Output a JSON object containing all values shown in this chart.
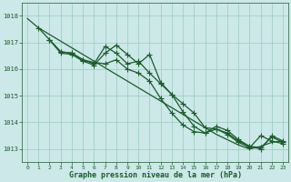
{
  "background_color": "#cce8e8",
  "grid_color": "#99ccbb",
  "line_color": "#1a5c2a",
  "ylim": [
    1012.5,
    1018.5
  ],
  "xlim": [
    -0.5,
    23.5
  ],
  "yticks": [
    1013,
    1014,
    1015,
    1016,
    1017,
    1018
  ],
  "xticks": [
    0,
    1,
    2,
    3,
    4,
    5,
    6,
    7,
    8,
    9,
    10,
    11,
    12,
    13,
    14,
    15,
    16,
    17,
    18,
    19,
    20,
    21,
    22,
    23
  ],
  "xlabel": "Graphe pression niveau de la mer (hPa)",
  "series": [
    {
      "x": [
        0,
        1,
        2,
        3,
        4,
        5,
        6,
        7,
        8,
        9,
        10,
        11,
        12,
        13,
        14,
        15,
        16,
        17,
        18,
        19,
        20,
        21,
        22,
        23
      ],
      "y": [
        1017.9,
        1017.55,
        1017.3,
        1017.05,
        1016.8,
        1016.55,
        1016.3,
        1016.05,
        1015.8,
        1015.55,
        1015.3,
        1015.05,
        1014.8,
        1014.55,
        1014.3,
        1014.05,
        1013.8,
        1013.55,
        1013.35,
        1013.15,
        1013.0,
        1013.1,
        1013.25,
        1013.3
      ],
      "marker": false
    },
    {
      "x": [
        1,
        2,
        3,
        4,
        5,
        6,
        7,
        8,
        9,
        10,
        11,
        12,
        13,
        14,
        15,
        16,
        17,
        18,
        19,
        20,
        21,
        22,
        23
      ],
      "y": [
        1017.55,
        1017.1,
        1016.65,
        1016.6,
        1016.35,
        1016.2,
        1016.85,
        1016.6,
        1016.2,
        1016.3,
        1015.85,
        1015.45,
        1015.05,
        1014.7,
        1014.35,
        1013.8,
        1013.75,
        1013.55,
        1013.25,
        1013.05,
        1013.5,
        1013.3,
        1013.2
      ],
      "marker": true
    },
    {
      "x": [
        2,
        3,
        4,
        5,
        6,
        7,
        8,
        9,
        10,
        11,
        12,
        13,
        14,
        15,
        16,
        17,
        18,
        19,
        20,
        21,
        22,
        23
      ],
      "y": [
        1017.1,
        1016.65,
        1016.6,
        1016.35,
        1016.25,
        1016.2,
        1016.35,
        1016.0,
        1015.85,
        1015.55,
        1014.9,
        1014.35,
        1013.9,
        1013.65,
        1013.6,
        1013.75,
        1013.6,
        1013.3,
        1013.1,
        1013.05,
        1013.45,
        1013.25
      ],
      "marker": true
    },
    {
      "x": [
        2,
        3,
        4,
        5,
        6,
        7,
        8,
        9,
        10,
        11,
        12,
        13,
        14,
        15,
        16,
        17,
        18,
        19,
        20,
        21,
        22,
        23
      ],
      "y": [
        1017.1,
        1016.6,
        1016.55,
        1016.3,
        1016.15,
        1016.6,
        1016.9,
        1016.55,
        1016.2,
        1016.55,
        1015.5,
        1015.05,
        1014.4,
        1013.85,
        1013.6,
        1013.85,
        1013.7,
        1013.35,
        1013.1,
        1013.0,
        1013.5,
        1013.3
      ],
      "marker": true
    }
  ],
  "marker_style": "+",
  "markersize": 4,
  "linewidth": 0.9
}
